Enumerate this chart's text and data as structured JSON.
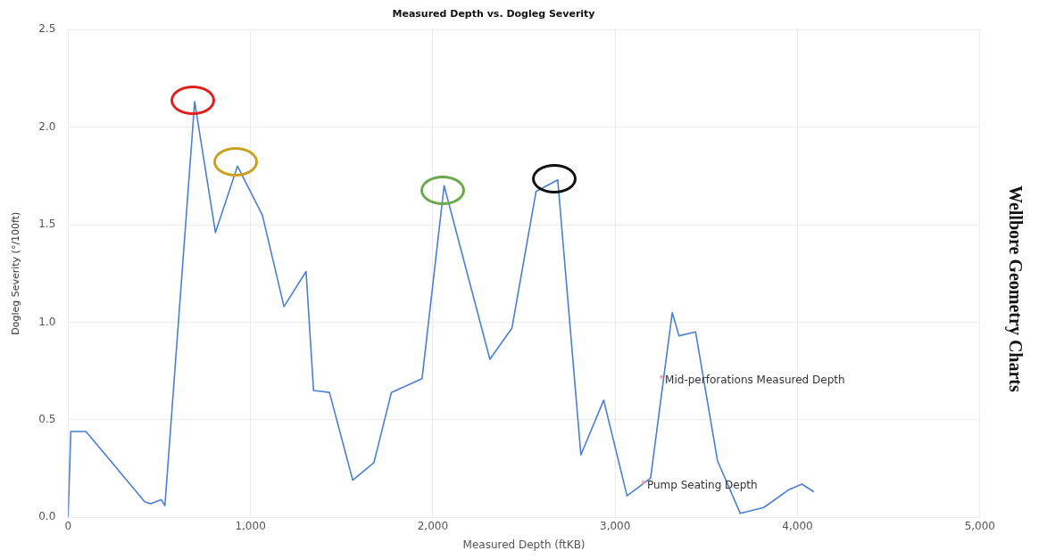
{
  "chart_data": {
    "type": "line",
    "title": "Measured Depth vs. Dogleg Severity",
    "xlabel": "Measured Depth (ftKB)",
    "ylabel": "Dogleg Severity (°/100ft)",
    "x": [
      0,
      15,
      98,
      420,
      452,
      511,
      531,
      694,
      808,
      929,
      1065,
      1184,
      1305,
      1346,
      1433,
      1561,
      1677,
      1773,
      1941,
      2062,
      2313,
      2434,
      2566,
      2685,
      2812,
      2937,
      3065,
      3194,
      3313,
      3350,
      3441,
      3561,
      3686,
      3815,
      3950,
      4024,
      4090
    ],
    "series": [
      {
        "color": "#4a7fd4",
        "values": [
          0,
          0.44,
          0.44,
          0.08,
          0.07,
          0.09,
          0.06,
          2.13,
          1.46,
          1.8,
          1.55,
          1.08,
          1.26,
          0.65,
          0.64,
          0.19,
          0.28,
          0.64,
          0.71,
          1.7,
          0.81,
          0.97,
          1.67,
          1.73,
          0.32,
          0.6,
          0.11,
          0.2,
          1.05,
          0.93,
          0.95,
          0.29,
          0.02,
          0.05,
          0.14,
          0.17,
          0.13
        ]
      }
    ],
    "xlim": [
      0,
      5000
    ],
    "xticks": [
      {
        "value": 0,
        "label": "0"
      },
      {
        "value": 1000,
        "label": "1,000"
      },
      {
        "value": 2000,
        "label": "2,000"
      },
      {
        "value": 3000,
        "label": "3,000"
      },
      {
        "value": 4000,
        "label": "4,000"
      },
      {
        "value": 5000,
        "label": "5,000"
      }
    ],
    "ylim": [
      0,
      2.5
    ],
    "yticks": [
      {
        "value": 0,
        "label": "0.0"
      },
      {
        "value": 0.5,
        "label": "0.5"
      },
      {
        "value": 1,
        "label": "1.0"
      },
      {
        "value": 1.5,
        "label": "1.5"
      },
      {
        "value": 2,
        "label": "2.0"
      },
      {
        "value": 2.5,
        "label": "2.5"
      }
    ],
    "grid": true,
    "marker": "none",
    "line_style": "solid",
    "annotations": [
      {
        "text": "Mid-perforations Measured Depth",
        "x": 3254,
        "y": 0.72
      },
      {
        "text": "Pump Seating Depth",
        "x": 3155,
        "y": 0.18
      },
      "Wellbore Geometry Charts"
    ]
  }
}
